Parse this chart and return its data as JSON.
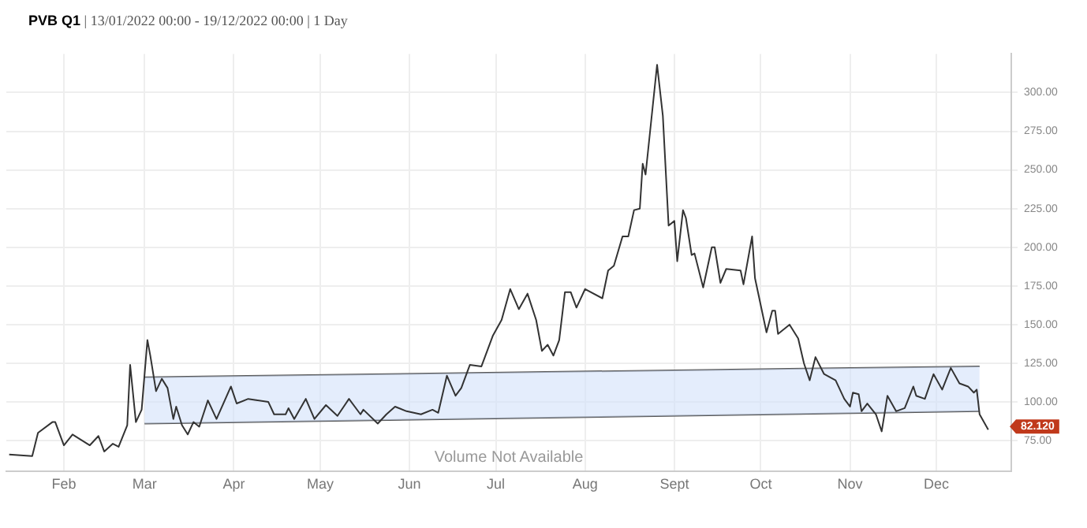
{
  "chart_data": {
    "type": "line",
    "title": "PVB Q1",
    "subtitle": "| 13/01/2022 00:00 - 19/12/2022 00:00 | 1 Day",
    "xlim": [
      "2022-01-12",
      "2022-12-27"
    ],
    "xticks": [
      {
        "value": "2022-02-01",
        "label": "Feb"
      },
      {
        "value": "2022-03-01",
        "label": "Mar"
      },
      {
        "value": "2022-04-01",
        "label": "Apr"
      },
      {
        "value": "2022-05-01",
        "label": "May"
      },
      {
        "value": "2022-06-01",
        "label": "Jun"
      },
      {
        "value": "2022-07-01",
        "label": "Jul"
      },
      {
        "value": "2022-08-01",
        "label": "Aug"
      },
      {
        "value": "2022-09-01",
        "label": "Sept"
      },
      {
        "value": "2022-10-01",
        "label": "Oct"
      },
      {
        "value": "2022-11-01",
        "label": "Nov"
      },
      {
        "value": "2022-12-01",
        "label": "Dec"
      }
    ],
    "ylim": [
      55,
      325
    ],
    "yticks": [
      {
        "value": 75,
        "label": "75.00"
      },
      {
        "value": 100,
        "label": "100.00"
      },
      {
        "value": 125,
        "label": "125.00"
      },
      {
        "value": 150,
        "label": "150.00"
      },
      {
        "value": 175,
        "label": "175.00"
      },
      {
        "value": 200,
        "label": "200.00"
      },
      {
        "value": 225,
        "label": "225.00"
      },
      {
        "value": 250,
        "label": "250.00"
      },
      {
        "value": 275,
        "label": "275.00"
      },
      {
        "value": 300,
        "label": "300.00"
      }
    ],
    "grid": true,
    "legend": false,
    "marker": "none",
    "line_style": "solid",
    "annotations": [
      "Volume Not Available",
      {
        "text": "82.120",
        "x": "2022-12-19",
        "y": 82.12
      }
    ],
    "series": [
      {
        "type": "line",
        "color": "#333333",
        "x": [
          "2022-01-13",
          "2022-01-21",
          "2022-01-23",
          "2022-01-28",
          "2022-01-29",
          "2022-02-01",
          "2022-02-04",
          "2022-02-10",
          "2022-02-13",
          "2022-02-15",
          "2022-02-18",
          "2022-02-20",
          "2022-02-23",
          "2022-02-24",
          "2022-02-26",
          "2022-02-28",
          "2022-03-02",
          "2022-03-03",
          "2022-03-05",
          "2022-03-07",
          "2022-03-09",
          "2022-03-11",
          "2022-03-12",
          "2022-03-14",
          "2022-03-16",
          "2022-03-18",
          "2022-03-20",
          "2022-03-23",
          "2022-03-26",
          "2022-03-31",
          "2022-04-02",
          "2022-04-06",
          "2022-04-13",
          "2022-04-15",
          "2022-04-19",
          "2022-04-20",
          "2022-04-22",
          "2022-04-26",
          "2022-04-29",
          "2022-05-03",
          "2022-05-07",
          "2022-05-11",
          "2022-05-15",
          "2022-05-16",
          "2022-05-21",
          "2022-05-24",
          "2022-05-27",
          "2022-05-31",
          "2022-06-05",
          "2022-06-09",
          "2022-06-11",
          "2022-06-14",
          "2022-06-17",
          "2022-06-19",
          "2022-06-22",
          "2022-06-26",
          "2022-06-30",
          "2022-07-03",
          "2022-07-06",
          "2022-07-09",
          "2022-07-12",
          "2022-07-15",
          "2022-07-17",
          "2022-07-19",
          "2022-07-21",
          "2022-07-23",
          "2022-07-25",
          "2022-07-27",
          "2022-07-29",
          "2022-08-01",
          "2022-08-07",
          "2022-08-09",
          "2022-08-11",
          "2022-08-14",
          "2022-08-16",
          "2022-08-18",
          "2022-08-20",
          "2022-08-21",
          "2022-08-22",
          "2022-08-26",
          "2022-08-28",
          "2022-08-30",
          "2022-09-01",
          "2022-09-02",
          "2022-09-04",
          "2022-09-05",
          "2022-09-07",
          "2022-09-08",
          "2022-09-11",
          "2022-09-14",
          "2022-09-15",
          "2022-09-17",
          "2022-09-19",
          "2022-09-24",
          "2022-09-25",
          "2022-09-28",
          "2022-09-29",
          "2022-10-03",
          "2022-10-05",
          "2022-10-06",
          "2022-10-07",
          "2022-10-11",
          "2022-10-14",
          "2022-10-16",
          "2022-10-18",
          "2022-10-20",
          "2022-10-23",
          "2022-10-27",
          "2022-10-30",
          "2022-11-01",
          "2022-11-02",
          "2022-11-04",
          "2022-11-05",
          "2022-11-07",
          "2022-11-10",
          "2022-11-12",
          "2022-11-14",
          "2022-11-17",
          "2022-11-20",
          "2022-11-23",
          "2022-11-24",
          "2022-11-27",
          "2022-11-30",
          "2022-12-03",
          "2022-12-06",
          "2022-12-09",
          "2022-12-12",
          "2022-12-14",
          "2022-12-15",
          "2022-12-16",
          "2022-12-19"
        ],
        "values": [
          66,
          65,
          80,
          87,
          87,
          72,
          79,
          72,
          78,
          68,
          73,
          71,
          85,
          124,
          87,
          95,
          140,
          130,
          107,
          115,
          109,
          89,
          97,
          85,
          79,
          87,
          84,
          101,
          89,
          110,
          99,
          102,
          100,
          92,
          92,
          96,
          89,
          102,
          89,
          98,
          91,
          102,
          92,
          95,
          86,
          92,
          97,
          94,
          92,
          95,
          93,
          117,
          104,
          109,
          124,
          123,
          143,
          153,
          173,
          160,
          170,
          153,
          133,
          137,
          130,
          140,
          171,
          171,
          161,
          173,
          167,
          185,
          188,
          207,
          207,
          224,
          225,
          254,
          247,
          318,
          285,
          214,
          217,
          191,
          224,
          219,
          195,
          196,
          174,
          200,
          200,
          177,
          186,
          185,
          176,
          207,
          180,
          145,
          159,
          159,
          144,
          150,
          141,
          125,
          114,
          129,
          118,
          114,
          102,
          97,
          106,
          105,
          94,
          99,
          92,
          81,
          104,
          94,
          96,
          110,
          104,
          102,
          118,
          108,
          122,
          112,
          110,
          106,
          108,
          92,
          82.12
        ]
      },
      {
        "type": "line",
        "color": "#555555",
        "x": [
          "2022-03-01",
          "2022-12-16"
        ],
        "values": [
          116,
          123
        ],
        "lower": [
          86,
          94
        ],
        "upper": [
          116,
          123
        ]
      },
      {
        "type": "line",
        "color": "#555555",
        "x": [
          "2022-03-01",
          "2022-12-16"
        ],
        "values": [
          86,
          94
        ]
      }
    ]
  }
}
